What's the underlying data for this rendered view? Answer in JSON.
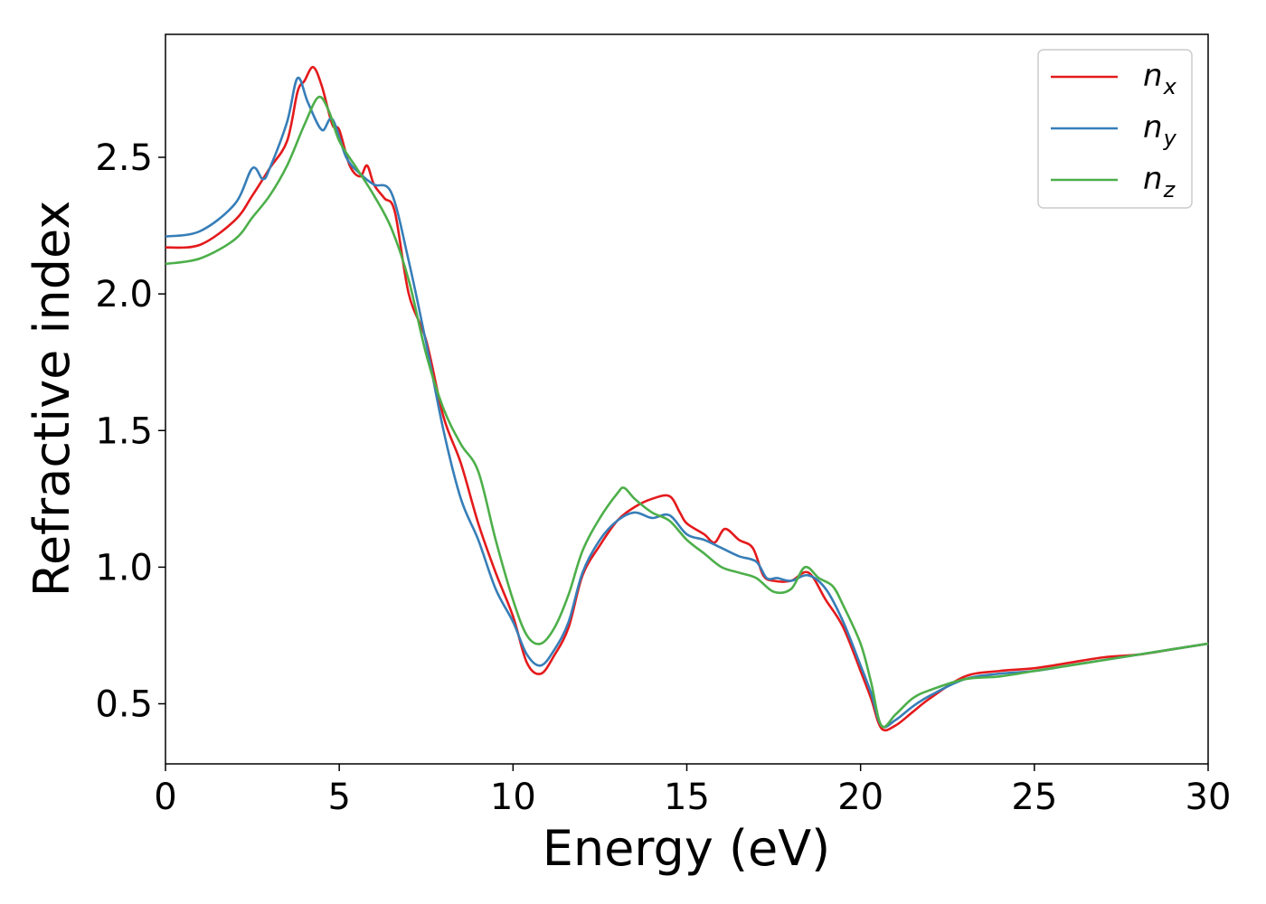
{
  "chart_data": {
    "type": "line",
    "title": "",
    "xlabel": "Energy (eV)",
    "ylabel": "Refractive index",
    "xlim": [
      0,
      30
    ],
    "ylim": [
      0.28,
      2.95
    ],
    "xticks": [
      0,
      5,
      10,
      15,
      20,
      25,
      30
    ],
    "yticks": [
      0.5,
      1.0,
      1.5,
      2.0,
      2.5
    ],
    "xtick_labels": [
      "0",
      "5",
      "10",
      "15",
      "20",
      "25",
      "30"
    ],
    "ytick_labels": [
      "0.5",
      "1.0",
      "1.5",
      "2.0",
      "2.5"
    ],
    "grid": false,
    "legend_position": "top-right",
    "series": [
      {
        "name": "n_x",
        "label_main": "n",
        "label_sub": "x",
        "color": "#e41a1c",
        "points": [
          [
            0,
            2.17
          ],
          [
            1,
            2.18
          ],
          [
            2,
            2.27
          ],
          [
            2.5,
            2.36
          ],
          [
            3,
            2.46
          ],
          [
            3.5,
            2.56
          ],
          [
            3.8,
            2.74
          ],
          [
            4.0,
            2.78
          ],
          [
            4.25,
            2.83
          ],
          [
            4.5,
            2.76
          ],
          [
            4.8,
            2.62
          ],
          [
            5.0,
            2.6
          ],
          [
            5.3,
            2.47
          ],
          [
            5.6,
            2.43
          ],
          [
            5.8,
            2.47
          ],
          [
            6.0,
            2.4
          ],
          [
            6.3,
            2.35
          ],
          [
            6.6,
            2.3
          ],
          [
            7.0,
            2.0
          ],
          [
            7.5,
            1.83
          ],
          [
            8.0,
            1.55
          ],
          [
            8.5,
            1.38
          ],
          [
            9.0,
            1.16
          ],
          [
            9.5,
            0.98
          ],
          [
            10.0,
            0.82
          ],
          [
            10.4,
            0.65
          ],
          [
            10.8,
            0.61
          ],
          [
            11.2,
            0.68
          ],
          [
            11.6,
            0.78
          ],
          [
            12.0,
            0.97
          ],
          [
            12.5,
            1.08
          ],
          [
            13.0,
            1.17
          ],
          [
            13.5,
            1.22
          ],
          [
            14.0,
            1.25
          ],
          [
            14.5,
            1.26
          ],
          [
            14.8,
            1.2
          ],
          [
            15.0,
            1.16
          ],
          [
            15.5,
            1.12
          ],
          [
            15.8,
            1.09
          ],
          [
            16.1,
            1.14
          ],
          [
            16.5,
            1.1
          ],
          [
            16.9,
            1.07
          ],
          [
            17.2,
            0.97
          ],
          [
            17.5,
            0.95
          ],
          [
            18.0,
            0.95
          ],
          [
            18.5,
            0.98
          ],
          [
            19.0,
            0.88
          ],
          [
            19.5,
            0.78
          ],
          [
            20.0,
            0.62
          ],
          [
            20.3,
            0.52
          ],
          [
            20.6,
            0.41
          ],
          [
            21.0,
            0.42
          ],
          [
            21.5,
            0.47
          ],
          [
            22.0,
            0.52
          ],
          [
            23.0,
            0.6
          ],
          [
            24.0,
            0.62
          ],
          [
            25.0,
            0.63
          ],
          [
            26.0,
            0.65
          ],
          [
            27.0,
            0.67
          ],
          [
            28.0,
            0.68
          ],
          [
            29.0,
            0.7
          ],
          [
            30.0,
            0.72
          ]
        ]
      },
      {
        "name": "n_y",
        "label_main": "n",
        "label_sub": "y",
        "color": "#377eb8",
        "points": [
          [
            0,
            2.21
          ],
          [
            1,
            2.23
          ],
          [
            2,
            2.33
          ],
          [
            2.5,
            2.46
          ],
          [
            2.8,
            2.42
          ],
          [
            3.0,
            2.46
          ],
          [
            3.5,
            2.63
          ],
          [
            3.8,
            2.79
          ],
          [
            4.1,
            2.7
          ],
          [
            4.5,
            2.6
          ],
          [
            4.8,
            2.64
          ],
          [
            5.2,
            2.5
          ],
          [
            5.6,
            2.44
          ],
          [
            6.0,
            2.4
          ],
          [
            6.5,
            2.37
          ],
          [
            7.0,
            2.12
          ],
          [
            7.5,
            1.82
          ],
          [
            8.0,
            1.5
          ],
          [
            8.5,
            1.25
          ],
          [
            9.0,
            1.1
          ],
          [
            9.5,
            0.92
          ],
          [
            10.0,
            0.8
          ],
          [
            10.4,
            0.68
          ],
          [
            10.8,
            0.64
          ],
          [
            11.2,
            0.7
          ],
          [
            11.6,
            0.8
          ],
          [
            12.0,
            0.98
          ],
          [
            12.5,
            1.1
          ],
          [
            13.0,
            1.17
          ],
          [
            13.5,
            1.2
          ],
          [
            14.0,
            1.18
          ],
          [
            14.5,
            1.19
          ],
          [
            15.0,
            1.12
          ],
          [
            15.5,
            1.1
          ],
          [
            16.0,
            1.07
          ],
          [
            16.5,
            1.04
          ],
          [
            17.0,
            1.02
          ],
          [
            17.3,
            0.96
          ],
          [
            17.6,
            0.96
          ],
          [
            18.0,
            0.95
          ],
          [
            18.5,
            0.97
          ],
          [
            19.0,
            0.92
          ],
          [
            19.5,
            0.8
          ],
          [
            20.0,
            0.64
          ],
          [
            20.3,
            0.54
          ],
          [
            20.6,
            0.42
          ],
          [
            21.0,
            0.44
          ],
          [
            21.5,
            0.49
          ],
          [
            22.0,
            0.53
          ],
          [
            23.0,
            0.59
          ],
          [
            24.0,
            0.61
          ],
          [
            25.0,
            0.62
          ],
          [
            26.0,
            0.64
          ],
          [
            27.0,
            0.66
          ],
          [
            28.0,
            0.68
          ],
          [
            29.0,
            0.7
          ],
          [
            30.0,
            0.72
          ]
        ]
      },
      {
        "name": "n_z",
        "label_main": "n",
        "label_sub": "z",
        "color": "#4daf4a",
        "points": [
          [
            0,
            2.11
          ],
          [
            1,
            2.13
          ],
          [
            2,
            2.2
          ],
          [
            2.5,
            2.28
          ],
          [
            3,
            2.36
          ],
          [
            3.5,
            2.47
          ],
          [
            4.0,
            2.62
          ],
          [
            4.4,
            2.72
          ],
          [
            4.7,
            2.67
          ],
          [
            5.0,
            2.56
          ],
          [
            5.5,
            2.46
          ],
          [
            6.0,
            2.36
          ],
          [
            6.5,
            2.24
          ],
          [
            7.0,
            2.05
          ],
          [
            7.5,
            1.78
          ],
          [
            8.0,
            1.58
          ],
          [
            8.5,
            1.45
          ],
          [
            9.0,
            1.35
          ],
          [
            9.5,
            1.1
          ],
          [
            10.0,
            0.88
          ],
          [
            10.4,
            0.75
          ],
          [
            10.8,
            0.72
          ],
          [
            11.2,
            0.78
          ],
          [
            11.6,
            0.9
          ],
          [
            12.0,
            1.06
          ],
          [
            12.5,
            1.18
          ],
          [
            13.0,
            1.27
          ],
          [
            13.2,
            1.29
          ],
          [
            13.5,
            1.25
          ],
          [
            14.0,
            1.2
          ],
          [
            14.5,
            1.17
          ],
          [
            15.0,
            1.1
          ],
          [
            15.5,
            1.05
          ],
          [
            16.0,
            1.0
          ],
          [
            16.5,
            0.98
          ],
          [
            17.0,
            0.96
          ],
          [
            17.5,
            0.91
          ],
          [
            18.0,
            0.92
          ],
          [
            18.4,
            1.0
          ],
          [
            18.8,
            0.96
          ],
          [
            19.2,
            0.93
          ],
          [
            19.5,
            0.86
          ],
          [
            20.0,
            0.72
          ],
          [
            20.3,
            0.58
          ],
          [
            20.6,
            0.42
          ],
          [
            21.0,
            0.46
          ],
          [
            21.5,
            0.52
          ],
          [
            22.0,
            0.55
          ],
          [
            23.0,
            0.59
          ],
          [
            24.0,
            0.6
          ],
          [
            25.0,
            0.62
          ],
          [
            26.0,
            0.64
          ],
          [
            27.0,
            0.66
          ],
          [
            28.0,
            0.68
          ],
          [
            29.0,
            0.7
          ],
          [
            30.0,
            0.72
          ]
        ]
      }
    ]
  }
}
